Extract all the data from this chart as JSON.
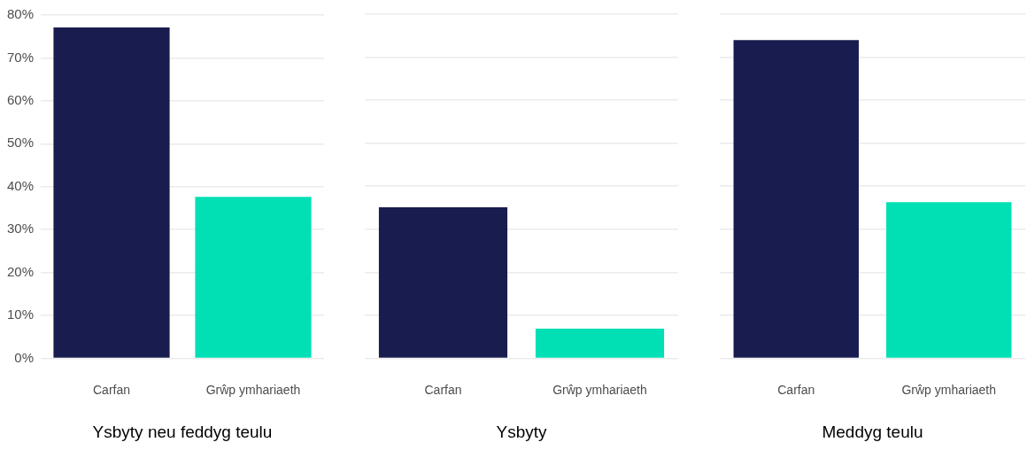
{
  "chart_data": [
    {
      "type": "bar",
      "xlabel": "Ysbyty neu feddyg teulu",
      "categories": [
        "Carfan",
        "Grŵp ymhariaeth"
      ],
      "values": [
        77.1,
        37.6
      ],
      "colors": [
        "#181c4e",
        "#00e0b4"
      ],
      "ylim": [
        0,
        80
      ],
      "yticks": [
        {
          "value": 0,
          "label": "0%"
        },
        {
          "value": 10,
          "label": "10%"
        },
        {
          "value": 20,
          "label": "20%"
        },
        {
          "value": 30,
          "label": "30%"
        },
        {
          "value": 40,
          "label": "40%"
        },
        {
          "value": 50,
          "label": "50%"
        },
        {
          "value": 60,
          "label": "60%"
        },
        {
          "value": 70,
          "label": "70%"
        },
        {
          "value": 80,
          "label": "80%"
        }
      ],
      "grid": "y"
    },
    {
      "type": "bar",
      "xlabel": "Ysbyty",
      "categories": [
        "Carfan",
        "Grŵp ymhariaeth"
      ],
      "values": [
        35.1,
        6.9
      ],
      "colors": [
        "#181c4e",
        "#00e0b4"
      ],
      "ylim": [
        0,
        80
      ],
      "yticks": [
        {
          "value": 0,
          "label": null
        },
        {
          "value": 10,
          "label": null
        },
        {
          "value": 20,
          "label": null
        },
        {
          "value": 30,
          "label": null
        },
        {
          "value": 40,
          "label": null
        },
        {
          "value": 50,
          "label": null
        },
        {
          "value": 60,
          "label": null
        },
        {
          "value": 70,
          "label": null
        },
        {
          "value": 80,
          "label": null
        }
      ],
      "grid": "y",
      "tick_labels": "x"
    },
    {
      "type": "bar",
      "xlabel": "Meddyg teulu",
      "categories": [
        "Carfan",
        "Grŵp ymhariaeth"
      ],
      "values": [
        74.0,
        36.3
      ],
      "colors": [
        "#181c4e",
        "#00e0b4"
      ],
      "ylim": [
        0,
        80
      ],
      "yticks": [
        {
          "value": 0,
          "label": null
        },
        {
          "value": 10,
          "label": null
        },
        {
          "value": 20,
          "label": null
        },
        {
          "value": 30,
          "label": null
        },
        {
          "value": 40,
          "label": null
        },
        {
          "value": 50,
          "label": null
        },
        {
          "value": 60,
          "label": null
        },
        {
          "value": 70,
          "label": null
        },
        {
          "value": 80,
          "label": null
        }
      ],
      "grid": "y",
      "tick_labels": "x"
    }
  ]
}
